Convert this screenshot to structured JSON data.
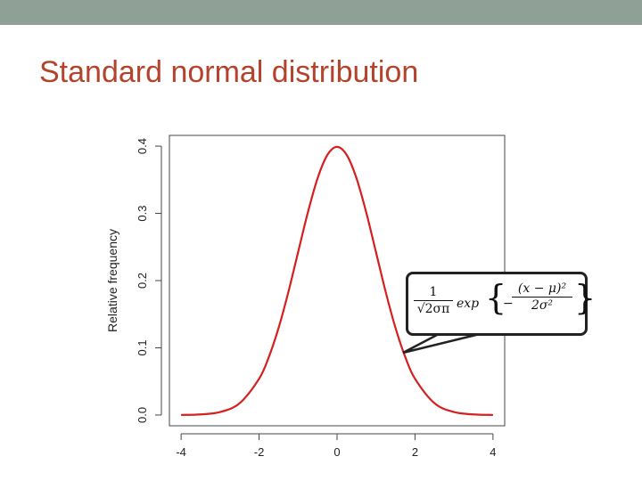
{
  "slide": {
    "title": "Standard normal distribution"
  },
  "colors": {
    "curve": "#d42020",
    "title": "#b4432b",
    "top_bar": "#8fa196"
  },
  "callout": {
    "fraction1_num": "1",
    "fraction1_den": "√2σπ",
    "exp": "exp",
    "brace_open": "{",
    "minus": "−",
    "fraction2_num": "(x − μ)²",
    "fraction2_den": "2σ²",
    "brace_close": "}"
  },
  "chart_data": {
    "type": "line",
    "title": "",
    "xlabel": "",
    "ylabel": "Relative frequency",
    "xlim": [
      -4.3,
      4.3
    ],
    "ylim": [
      -0.016,
      0.416
    ],
    "x_ticks": [
      "-4",
      "-2",
      "0",
      "2",
      "4"
    ],
    "y_ticks": [
      "0.0",
      "0.1",
      "0.2",
      "0.3",
      "0.4"
    ],
    "grid": false,
    "legend": "none",
    "series": [
      {
        "x": [
          -4.0,
          -3.5,
          -3.0,
          -2.5,
          -2.0,
          -1.75,
          -1.5,
          -1.25,
          -1.0,
          -0.75,
          -0.5,
          -0.25,
          0.0,
          0.25,
          0.5,
          0.75,
          1.0,
          1.25,
          1.5,
          1.75,
          2.0,
          2.5,
          3.0,
          3.5,
          4.0
        ],
        "y": [
          0.0001,
          0.0009,
          0.0044,
          0.0175,
          0.054,
          0.0863,
          0.1295,
          0.1826,
          0.242,
          0.3011,
          0.3521,
          0.3867,
          0.3989,
          0.3867,
          0.3521,
          0.3011,
          0.242,
          0.1826,
          0.1295,
          0.0863,
          0.054,
          0.0175,
          0.0044,
          0.0009,
          0.0001
        ]
      }
    ]
  }
}
